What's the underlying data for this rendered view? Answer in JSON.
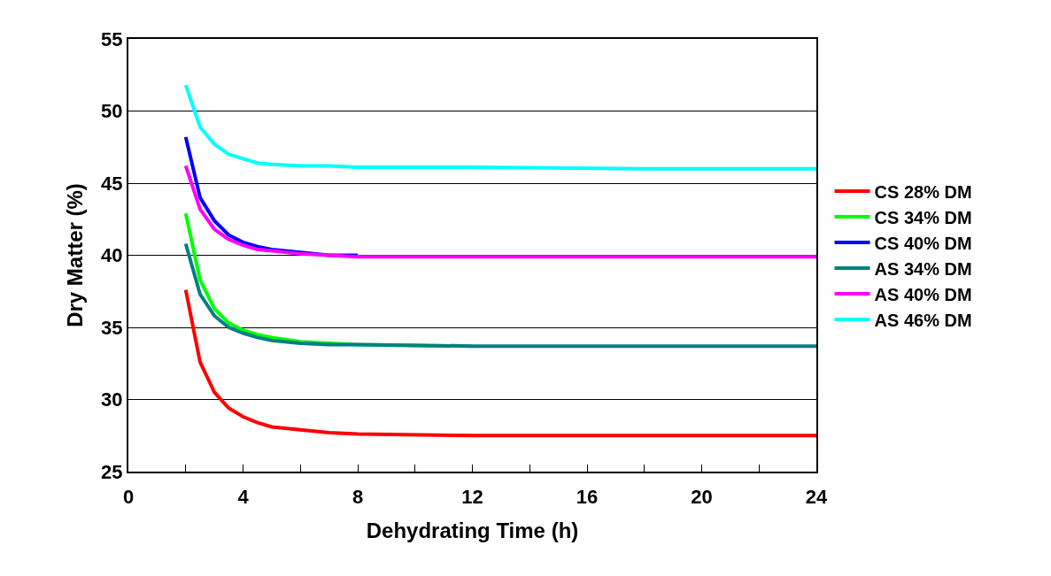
{
  "chart_data": {
    "type": "line",
    "xlabel": "Dehydrating Time (h)",
    "ylabel": "Dry Matter (%)",
    "x": [
      2,
      2.5,
      3,
      3.5,
      4,
      4.5,
      5,
      6,
      7,
      8,
      12,
      18,
      24
    ],
    "series": [
      {
        "name": "CS 28% DM",
        "color": "#ff0000",
        "values": [
          37.6,
          32.6,
          30.5,
          29.4,
          28.8,
          28.4,
          28.1,
          27.9,
          27.7,
          27.6,
          27.5,
          27.5,
          27.5
        ]
      },
      {
        "name": "CS 34% DM",
        "color": "#00ff00",
        "values": [
          42.9,
          38.3,
          36.3,
          35.3,
          34.8,
          34.5,
          34.3,
          34.0,
          33.9,
          33.8,
          33.7,
          null,
          null
        ]
      },
      {
        "name": "CS 40% DM",
        "color": "#0000ff",
        "values": [
          48.2,
          44.0,
          42.4,
          41.4,
          40.9,
          40.6,
          40.4,
          40.2,
          40.0,
          40.0,
          null,
          null,
          null
        ]
      },
      {
        "name": "AS 34% DM",
        "color": "#008080",
        "values": [
          40.8,
          37.3,
          35.8,
          35.0,
          34.6,
          34.3,
          34.1,
          33.9,
          33.8,
          33.8,
          33.7,
          33.7,
          33.7
        ]
      },
      {
        "name": "AS 40% DM",
        "color": "#ff00ff",
        "values": [
          46.2,
          43.2,
          41.8,
          41.1,
          40.7,
          40.4,
          40.3,
          40.1,
          40.0,
          39.9,
          39.9,
          39.9,
          39.9
        ]
      },
      {
        "name": "AS 46% DM",
        "color": "#00ffff",
        "values": [
          51.8,
          48.9,
          47.7,
          47.0,
          46.7,
          46.4,
          46.3,
          46.2,
          46.2,
          46.1,
          46.1,
          46.0,
          46.0
        ]
      }
    ],
    "xlim": [
      0,
      24
    ],
    "xticks": [
      0,
      {
        "value": 2,
        "label": null
      },
      4,
      {
        "value": 6,
        "label": null
      },
      8,
      {
        "value": 10,
        "label": null
      },
      12,
      {
        "value": 14,
        "label": null
      },
      16,
      {
        "value": 18,
        "label": null
      },
      20,
      {
        "value": 22,
        "label": null
      },
      24
    ],
    "ylim": [
      25,
      55
    ],
    "yticks": [
      25,
      30,
      35,
      40,
      45,
      50,
      55
    ],
    "grid": "y",
    "legend": "right",
    "marker": "none",
    "line_style": "solid"
  }
}
